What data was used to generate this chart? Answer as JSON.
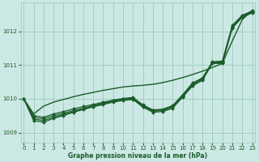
{
  "xlabel": "Graphe pression niveau de la mer (hPa)",
  "bg_color": "#cce8e4",
  "grid_color": "#99ccbb",
  "line_color": "#1a5c2a",
  "ylim": [
    1008.7,
    1012.85
  ],
  "xlim": [
    -0.3,
    23.3
  ],
  "yticks": [
    1009,
    1010,
    1011,
    1012
  ],
  "xticks": [
    0,
    1,
    2,
    3,
    4,
    5,
    6,
    7,
    8,
    9,
    10,
    11,
    12,
    13,
    14,
    15,
    16,
    17,
    18,
    19,
    20,
    21,
    22,
    23
  ],
  "series": [
    {
      "y": [
        1010.0,
        1009.35,
        1009.3,
        1009.42,
        1009.5,
        1009.6,
        1009.68,
        1009.76,
        1009.83,
        1009.9,
        1009.95,
        1009.98,
        1009.75,
        1009.6,
        1009.62,
        1009.72,
        1010.05,
        1010.38,
        1010.55,
        1011.05,
        1011.05,
        1012.1,
        1012.42,
        1012.55
      ],
      "marker": "D",
      "markersize": 2.0,
      "lw": 0.9
    },
    {
      "y": [
        1010.0,
        1009.4,
        1009.35,
        1009.45,
        1009.53,
        1009.62,
        1009.7,
        1009.78,
        1009.85,
        1009.92,
        1009.97,
        1010.0,
        1009.78,
        1009.63,
        1009.65,
        1009.75,
        1010.08,
        1010.42,
        1010.58,
        1011.07,
        1011.07,
        1012.12,
        1012.44,
        1012.57
      ],
      "marker": "D",
      "markersize": 2.0,
      "lw": 0.9
    },
    {
      "y": [
        1010.0,
        1009.45,
        1009.4,
        1009.5,
        1009.57,
        1009.65,
        1009.72,
        1009.8,
        1009.87,
        1009.94,
        1009.99,
        1010.02,
        1009.8,
        1009.65,
        1009.67,
        1009.78,
        1010.1,
        1010.45,
        1010.6,
        1011.08,
        1011.1,
        1012.15,
        1012.46,
        1012.59
      ],
      "marker": "D",
      "markersize": 2.0,
      "lw": 0.9
    },
    {
      "y": [
        1010.0,
        1009.5,
        1009.45,
        1009.55,
        1009.62,
        1009.7,
        1009.77,
        1009.83,
        1009.9,
        1009.96,
        1010.01,
        1010.04,
        1009.82,
        1009.67,
        1009.69,
        1009.8,
        1010.12,
        1010.47,
        1010.62,
        1011.1,
        1011.12,
        1012.18,
        1012.48,
        1012.61
      ],
      "marker": "D",
      "markersize": 2.0,
      "lw": 0.9
    },
    {
      "y": [
        1010.0,
        1009.55,
        1009.78,
        1009.9,
        1009.98,
        1010.06,
        1010.13,
        1010.19,
        1010.25,
        1010.3,
        1010.35,
        1010.38,
        1010.4,
        1010.43,
        1010.48,
        1010.55,
        1010.63,
        1010.72,
        1010.82,
        1010.93,
        1011.05,
        1011.72,
        1012.35,
        1012.63
      ],
      "marker": null,
      "markersize": 0,
      "lw": 1.0
    }
  ]
}
